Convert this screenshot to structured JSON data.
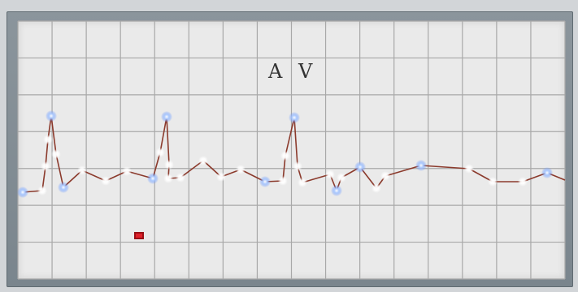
{
  "board": {
    "title": "A V"
  },
  "colors": {
    "frame": "#7f8a92",
    "board_background": "#eaeaea",
    "grid_line": "#a8a8a8",
    "trace": "#8b3a2c",
    "led_white": "#ffffff",
    "led_blue": "#7fb0ff",
    "indicator": "#c0141b"
  },
  "icons": {
    "indicator": "red-led-indicator-icon"
  }
}
